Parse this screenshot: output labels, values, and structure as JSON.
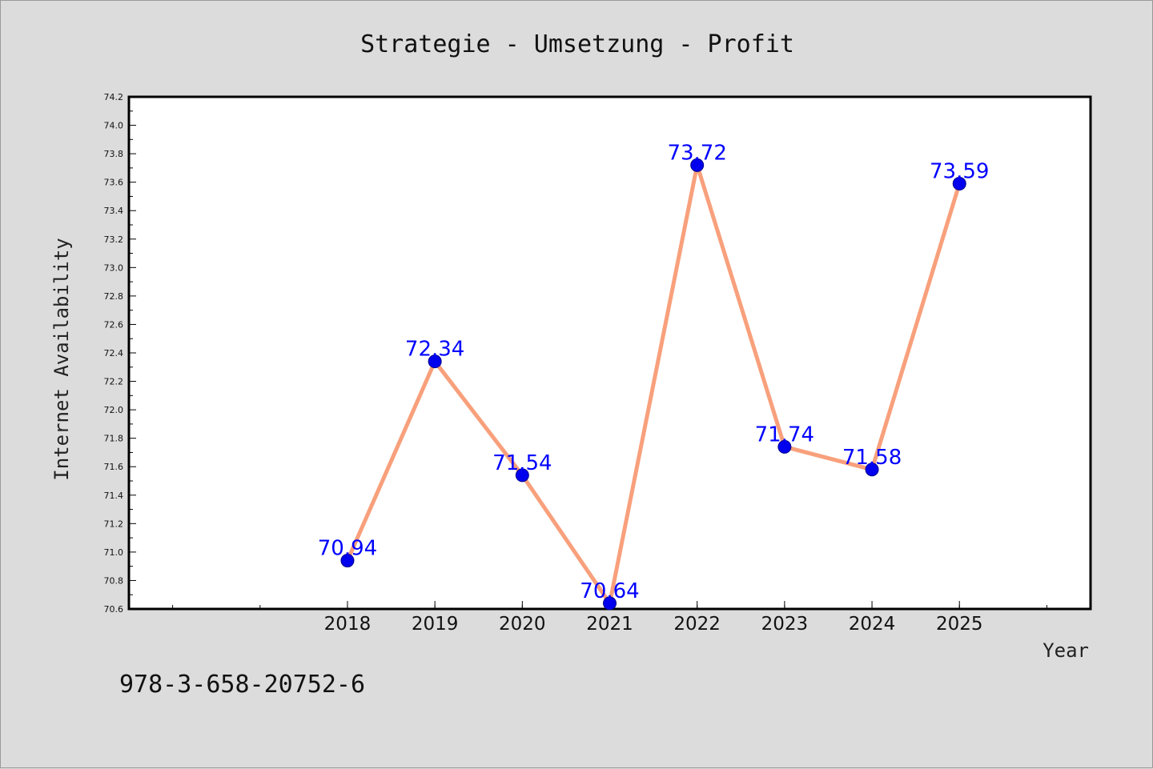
{
  "chart_data": {
    "type": "line",
    "title": "Strategie - Umsetzung - Profit",
    "xlabel": "Year",
    "ylabel": "Internet Availability",
    "x": [
      2018,
      2019,
      2020,
      2021,
      2022,
      2023,
      2024,
      2025
    ],
    "x_tick_labels": [
      "2018",
      "2019",
      "2020",
      "2021",
      "2022",
      "2023",
      "2024",
      "2025"
    ],
    "series": [
      {
        "values": [
          70.94,
          72.34,
          71.54,
          70.64,
          73.72,
          71.74,
          71.58,
          73.59
        ],
        "data_labels": [
          "70.94",
          "72.34",
          "71.54",
          "70.64",
          "73.72",
          "71.74",
          "71.58",
          "73.59"
        ]
      }
    ],
    "xlim": [
      2015.5,
      2026.5
    ],
    "ylim": [
      70.6,
      74.2
    ],
    "y_ticks": [
      "70.6",
      "70.8",
      "71.0",
      "71.2",
      "71.4",
      "71.6",
      "71.8",
      "72.0",
      "72.2",
      "72.4",
      "72.6",
      "72.8",
      "73.0",
      "73.2",
      "73.4",
      "73.6",
      "73.8",
      "74.0",
      "74.2"
    ],
    "grid": false,
    "colors": {
      "line": "#f8a07c",
      "marker": "#0000ee",
      "labels": "#0000ff",
      "plot_bg": "#ffffff",
      "page_bg": "#dcdcdc"
    }
  },
  "footer": {
    "isbn": "978-3-658-20752-6"
  }
}
